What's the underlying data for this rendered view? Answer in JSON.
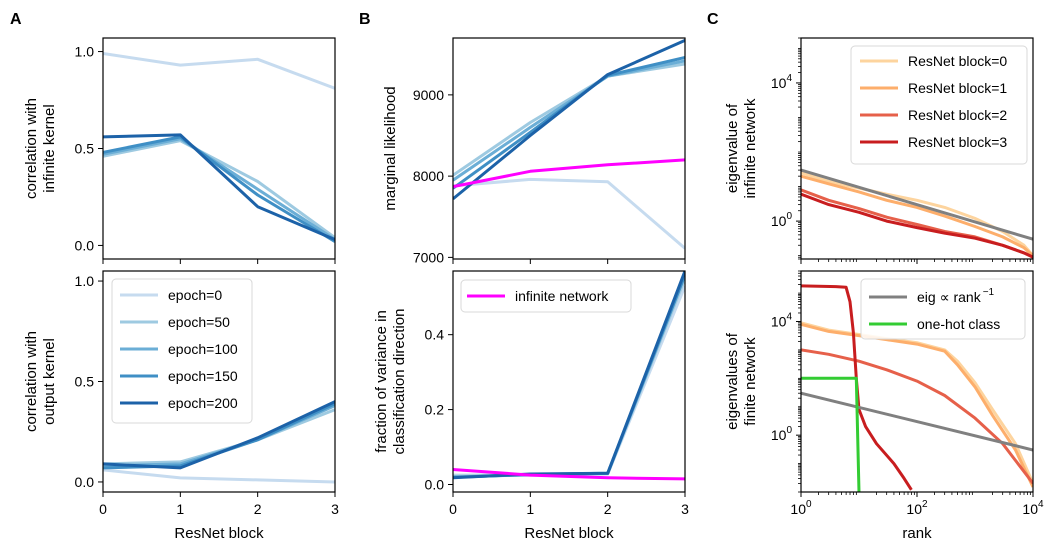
{
  "colors": {
    "epoch": [
      "#c6dbef",
      "#9ecae1",
      "#6baed6",
      "#3f8fc5",
      "#1c62a8"
    ],
    "resnet": [
      "#fdd49e",
      "#fdae6b",
      "#e6604a",
      "#c81d1f"
    ],
    "infinite": "#ff00ff",
    "power_law": "#808080",
    "one_hot": "#33cc33"
  },
  "panel_letters": {
    "A": "A",
    "B": "B",
    "C": "C"
  },
  "chart_data": [
    {
      "id": "A-top",
      "type": "line",
      "ylabel": "correlation with\ninfinite kernel",
      "xlabel": "",
      "xlim": [
        0,
        3
      ],
      "ylim": [
        -0.07,
        1.07
      ],
      "xticks": [
        0,
        1,
        2,
        3
      ],
      "xticklabels": [
        "",
        "",
        "",
        ""
      ],
      "yticks": [
        0.0,
        0.5,
        1.0
      ],
      "yticklabels": [
        "0.0",
        "0.5",
        "1.0"
      ],
      "x": [
        0,
        1,
        2,
        3
      ],
      "series": [
        {
          "name": "epoch=0",
          "values": [
            0.99,
            0.93,
            0.96,
            0.81
          ]
        },
        {
          "name": "epoch=50",
          "values": [
            0.46,
            0.54,
            0.33,
            0.04
          ]
        },
        {
          "name": "epoch=100",
          "values": [
            0.47,
            0.55,
            0.29,
            0.03
          ]
        },
        {
          "name": "epoch=150",
          "values": [
            0.48,
            0.56,
            0.26,
            0.02
          ]
        },
        {
          "name": "epoch=200",
          "values": [
            0.56,
            0.57,
            0.2,
            0.03
          ]
        }
      ]
    },
    {
      "id": "A-bottom",
      "type": "line",
      "ylabel": "correlation with\noutput kernel",
      "xlabel": "ResNet block",
      "xlim": [
        0,
        3
      ],
      "ylim": [
        -0.05,
        1.05
      ],
      "xticks": [
        0,
        1,
        2,
        3
      ],
      "xticklabels": [
        "0",
        "1",
        "2",
        "3"
      ],
      "yticks": [
        0.0,
        0.5,
        1.0
      ],
      "yticklabels": [
        "0.0",
        "0.5",
        "1.0"
      ],
      "x": [
        0,
        1,
        2,
        3
      ],
      "legend": {
        "position": "upper-left"
      },
      "series": [
        {
          "name": "epoch=0",
          "values": [
            0.06,
            0.02,
            0.01,
            0.0
          ]
        },
        {
          "name": "epoch=50",
          "values": [
            0.09,
            0.1,
            0.21,
            0.36
          ]
        },
        {
          "name": "epoch=100",
          "values": [
            0.08,
            0.09,
            0.21,
            0.38
          ]
        },
        {
          "name": "epoch=150",
          "values": [
            0.07,
            0.08,
            0.21,
            0.39
          ]
        },
        {
          "name": "epoch=200",
          "values": [
            0.09,
            0.07,
            0.22,
            0.4
          ]
        }
      ]
    },
    {
      "id": "B-top",
      "type": "line",
      "ylabel": "marginal likelihood",
      "xlabel": "",
      "xlim": [
        0,
        3
      ],
      "ylim": [
        6980,
        9700
      ],
      "xticks": [
        0,
        1,
        2,
        3
      ],
      "xticklabels": [
        "",
        "",
        "",
        ""
      ],
      "yticks": [
        7000,
        8000,
        9000
      ],
      "yticklabels": [
        "7000",
        "8000",
        "9000"
      ],
      "x": [
        0,
        1,
        2,
        3
      ],
      "series": [
        {
          "name": "epoch=0",
          "values": [
            7880,
            7960,
            7930,
            7110
          ]
        },
        {
          "name": "epoch=50",
          "values": [
            8010,
            8660,
            9230,
            9380
          ]
        },
        {
          "name": "epoch=100",
          "values": [
            7950,
            8600,
            9230,
            9420
          ]
        },
        {
          "name": "epoch=150",
          "values": [
            7850,
            8540,
            9240,
            9460
          ]
        },
        {
          "name": "epoch=200",
          "values": [
            7720,
            8500,
            9250,
            9670
          ]
        },
        {
          "name": "infinite network",
          "values": [
            7870,
            8060,
            8140,
            8200
          ]
        }
      ]
    },
    {
      "id": "B-bottom",
      "type": "line",
      "ylabel": "fraction of variance in\nclassification direction",
      "xlabel": "ResNet block",
      "xlim": [
        0,
        3
      ],
      "ylim": [
        -0.02,
        0.57
      ],
      "xticks": [
        0,
        1,
        2,
        3
      ],
      "xticklabels": [
        "0",
        "1",
        "2",
        "3"
      ],
      "yticks": [
        0.0,
        0.2,
        0.4
      ],
      "yticklabels": [
        "0.0",
        "0.2",
        "0.4"
      ],
      "x": [
        0,
        1,
        2,
        3
      ],
      "legend": {
        "position": "upper-left"
      },
      "series": [
        {
          "name": "epoch=0",
          "values": [
            0.025,
            0.027,
            0.028,
            0.53
          ]
        },
        {
          "name": "epoch=50",
          "values": [
            0.022,
            0.025,
            0.029,
            0.55
          ]
        },
        {
          "name": "epoch=100",
          "values": [
            0.02,
            0.026,
            0.03,
            0.56
          ]
        },
        {
          "name": "epoch=150",
          "values": [
            0.019,
            0.027,
            0.03,
            0.56
          ]
        },
        {
          "name": "epoch=200",
          "values": [
            0.018,
            0.028,
            0.03,
            0.57
          ]
        },
        {
          "name": "infinite network",
          "values": [
            0.04,
            0.025,
            0.018,
            0.015
          ]
        }
      ]
    },
    {
      "id": "C-top",
      "type": "line",
      "scale": "log-log",
      "ylabel": "eigenvalue of\ninfinite network",
      "xlabel": "",
      "xlim": [
        1,
        10000
      ],
      "ylim": [
        0.08,
        200000
      ],
      "xticks": [
        1,
        100,
        10000
      ],
      "xticklabels": [
        "",
        "",
        ""
      ],
      "yticks": [
        1,
        10000
      ],
      "yticklabels": [
        "10^0",
        "10^4"
      ],
      "legend": {
        "position": "upper-right"
      },
      "series": [
        {
          "name": "ResNet block=0",
          "points": [
            [
              1,
              25
            ],
            [
              3,
              14
            ],
            [
              10,
              9
            ],
            [
              30,
              6
            ],
            [
              100,
              4
            ],
            [
              300,
              2.5
            ],
            [
              1000,
              1.2
            ],
            [
              3000,
              0.5
            ],
            [
              7000,
              0.2
            ],
            [
              10000,
              0.1
            ]
          ]
        },
        {
          "name": "ResNet block=1",
          "points": [
            [
              1,
              20
            ],
            [
              3,
              12
            ],
            [
              10,
              7
            ],
            [
              30,
              4
            ],
            [
              100,
              2.5
            ],
            [
              300,
              1.4
            ],
            [
              1000,
              0.7
            ],
            [
              3000,
              0.35
            ],
            [
              7000,
              0.17
            ],
            [
              10000,
              0.1
            ]
          ]
        },
        {
          "name": "ResNet block=2",
          "points": [
            [
              1,
              8
            ],
            [
              3,
              4
            ],
            [
              10,
              2.3
            ],
            [
              30,
              1.3
            ],
            [
              100,
              0.8
            ],
            [
              300,
              0.5
            ],
            [
              1000,
              0.35
            ],
            [
              3000,
              0.2
            ],
            [
              7000,
              0.12
            ],
            [
              10000,
              0.09
            ]
          ]
        },
        {
          "name": "ResNet block=3",
          "points": [
            [
              1,
              6
            ],
            [
              3,
              3
            ],
            [
              10,
              1.8
            ],
            [
              30,
              1.0
            ],
            [
              100,
              0.65
            ],
            [
              300,
              0.45
            ],
            [
              1000,
              0.32
            ],
            [
              3000,
              0.2
            ],
            [
              7000,
              0.12
            ],
            [
              10000,
              0.09
            ]
          ]
        },
        {
          "name": "eig ∝ rank^−1",
          "points": [
            [
              1,
              30
            ],
            [
              10000,
              0.3
            ]
          ]
        }
      ]
    },
    {
      "id": "C-bottom",
      "type": "line",
      "scale": "log-log",
      "ylabel": "eigenvalues of\nfinite network",
      "xlabel": "rank",
      "xlim": [
        1,
        10000
      ],
      "ylim": [
        0.01,
        600000
      ],
      "xticks": [
        1,
        100,
        10000
      ],
      "xticklabels": [
        "10^0",
        "10^2",
        "10^4"
      ],
      "yticks": [
        1,
        10000
      ],
      "yticklabels": [
        "10^0",
        "10^4"
      ],
      "legend": {
        "position": "upper-right"
      },
      "series": [
        {
          "name": "ResNet block=0",
          "points": [
            [
              1,
              9000
            ],
            [
              3,
              5000
            ],
            [
              10,
              3500
            ],
            [
              30,
              2500
            ],
            [
              100,
              1800
            ],
            [
              300,
              1000
            ],
            [
              500,
              400
            ],
            [
              1000,
              70
            ],
            [
              2000,
              8
            ],
            [
              5000,
              0.5
            ],
            [
              10000,
              0.02
            ]
          ]
        },
        {
          "name": "ResNet block=1",
          "points": [
            [
              1,
              8000
            ],
            [
              3,
              4500
            ],
            [
              10,
              3200
            ],
            [
              30,
              2300
            ],
            [
              100,
              1600
            ],
            [
              300,
              900
            ],
            [
              500,
              300
            ],
            [
              1000,
              50
            ],
            [
              2000,
              5
            ],
            [
              5000,
              0.3
            ],
            [
              10000,
              0.015
            ]
          ]
        },
        {
          "name": "ResNet block=2",
          "points": [
            [
              1,
              1000
            ],
            [
              3,
              700
            ],
            [
              10,
              400
            ],
            [
              30,
              200
            ],
            [
              100,
              80
            ],
            [
              300,
              25
            ],
            [
              1000,
              4
            ],
            [
              3000,
              0.5
            ],
            [
              10000,
              0.02
            ]
          ]
        },
        {
          "name": "ResNet block=3",
          "points": [
            [
              1,
              180000
            ],
            [
              4,
              170000
            ],
            [
              6,
              160000
            ],
            [
              7,
              50000
            ],
            [
              8,
              4000
            ],
            [
              9,
              100
            ],
            [
              10,
              8
            ],
            [
              13,
              2
            ],
            [
              20,
              0.5
            ],
            [
              40,
              0.1
            ],
            [
              60,
              0.03
            ],
            [
              80,
              0.012
            ]
          ]
        },
        {
          "name": "eig ∝ rank^−1",
          "points": [
            [
              1,
              30
            ],
            [
              10000,
              0.3
            ]
          ]
        },
        {
          "name": "one-hot class",
          "points": [
            [
              1,
              100
            ],
            [
              9,
              100
            ],
            [
              10,
              0.01
            ]
          ]
        }
      ]
    }
  ],
  "legends": {
    "epoch": [
      "epoch=0",
      "epoch=50",
      "epoch=100",
      "epoch=150",
      "epoch=200"
    ],
    "infinite": [
      "infinite network"
    ],
    "resnet": [
      "ResNet block=0",
      "ResNet block=1",
      "ResNet block=2",
      "ResNet block=3"
    ],
    "reference": [
      "eig ∝ rank",
      "one-hot class"
    ],
    "reference_exponent": "−1"
  }
}
